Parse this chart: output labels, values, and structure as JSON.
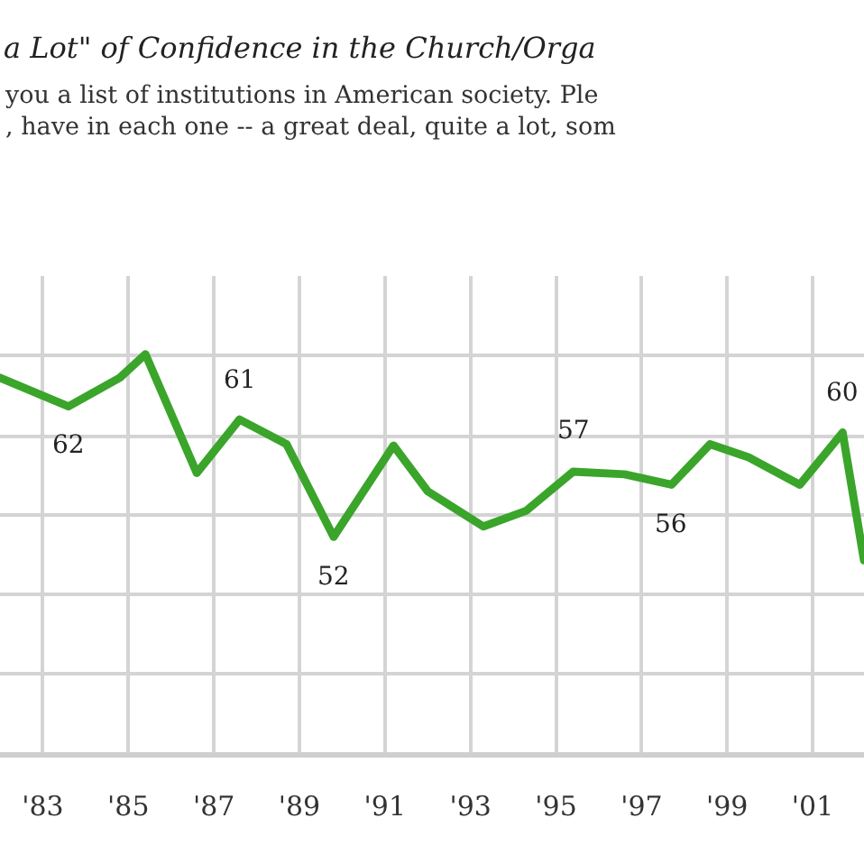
{
  "chart_data": {
    "type": "line",
    "title": "a Lot\" of Confidence in the Church/Orga",
    "subtitle": "you a list of institutions in American society. Ple\n, have in each one -- a great deal, quite a lot, som",
    "x": [
      1982.0,
      1983.6,
      1984.8,
      1985.4,
      1986.6,
      1987.6,
      1988.7,
      1989.8,
      1991.2,
      1992.0,
      1993.3,
      1994.3,
      1995.4,
      1996.6,
      1997.7,
      1998.6,
      1999.5,
      2000.7,
      2001.7,
      2002.2
    ],
    "series": [
      {
        "color": "#3aa52a",
        "values": [
          64.2,
          62,
          64.2,
          66,
          56.9,
          61,
          59.1,
          52,
          59,
          55.5,
          52.8,
          54,
          57,
          56.8,
          56,
          59.1,
          58.1,
          56,
          60,
          50.2
        ],
        "value_labels": [
          null,
          "62",
          null,
          null,
          null,
          "61",
          null,
          "52",
          null,
          null,
          null,
          null,
          "57",
          null,
          "56",
          null,
          null,
          null,
          "60",
          null
        ]
      }
    ],
    "xlim": [
      1982.0,
      2002.2
    ],
    "xticks": [
      {
        "value": 1983,
        "label": "'83"
      },
      {
        "value": 1985,
        "label": "'85"
      },
      {
        "value": 1987,
        "label": "'87"
      },
      {
        "value": 1989,
        "label": "'89"
      },
      {
        "value": 1991,
        "label": "'91"
      },
      {
        "value": 1993,
        "label": "'93"
      },
      {
        "value": 1995,
        "label": "'95"
      },
      {
        "value": 1997,
        "label": "'97"
      },
      {
        "value": 1999,
        "label": "'99"
      },
      {
        "value": 2001,
        "label": "'01"
      }
    ],
    "ylim": [
      35.5,
      72
    ],
    "yticks": [
      {
        "value": 41.5,
        "label": null
      },
      {
        "value": 47.6,
        "label": null
      },
      {
        "value": 53.7,
        "label": null
      },
      {
        "value": 59.7,
        "label": null
      },
      {
        "value": 65.9,
        "label": null
      }
    ],
    "tick_labels": "x",
    "grid": true,
    "marker": "none",
    "line_style": "solid"
  }
}
